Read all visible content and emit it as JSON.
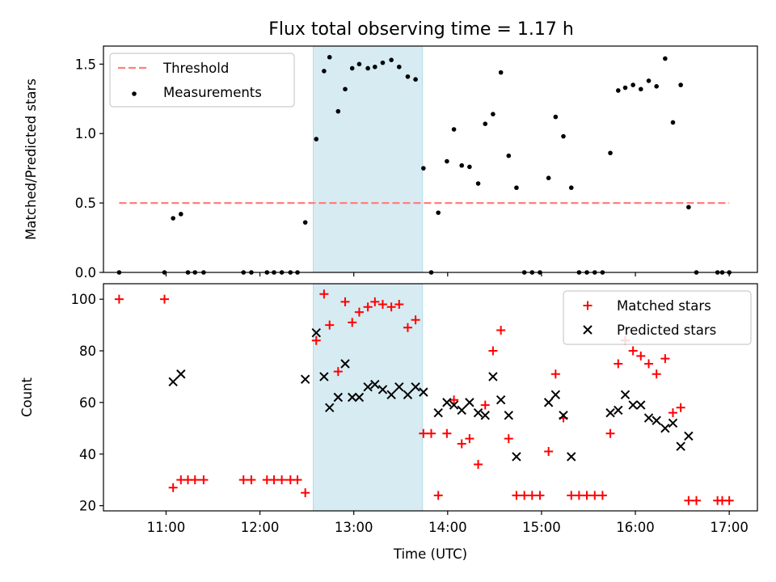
{
  "title": "Flux total observing time = 1.17 h",
  "chart_data": [
    {
      "type": "scatter",
      "ylabel": "Matched/Predicted stars",
      "xlim": [
        10.333,
        17.3
      ],
      "ylim": [
        0,
        1.63
      ],
      "yticks": [
        0.0,
        0.5,
        1.0,
        1.5
      ],
      "shaded_region": {
        "x_start": 12.567,
        "x_end": 13.733,
        "color": "#add8e6"
      },
      "legend_position": "upper left",
      "series": [
        {
          "name": "Threshold",
          "kind": "dashed-line",
          "color": "#ff7f7f",
          "x": [
            10.5,
            17.0
          ],
          "y": [
            0.5,
            0.5
          ]
        },
        {
          "name": "Measurements",
          "kind": "dot",
          "color": "#000000",
          "x": [
            10.5,
            10.983,
            11.075,
            11.158,
            11.233,
            11.308,
            11.4,
            11.825,
            11.908,
            12.075,
            12.15,
            12.233,
            12.325,
            12.4,
            12.483,
            12.6,
            12.683,
            12.742,
            12.833,
            12.908,
            12.983,
            13.058,
            13.15,
            13.225,
            13.308,
            13.4,
            13.483,
            13.575,
            13.658,
            13.742,
            13.825,
            13.9,
            13.992,
            14.067,
            14.15,
            14.233,
            14.325,
            14.4,
            14.483,
            14.567,
            14.65,
            14.733,
            14.817,
            14.9,
            14.983,
            15.075,
            15.15,
            15.233,
            15.317,
            15.4,
            15.483,
            15.567,
            15.65,
            15.733,
            15.817,
            15.892,
            15.975,
            16.058,
            16.142,
            16.225,
            16.317,
            16.4,
            16.483,
            16.567,
            16.65,
            16.875,
            16.925,
            17.0
          ],
          "y": [
            0.0,
            0.0,
            0.39,
            0.42,
            0.0,
            0.0,
            0.0,
            0.0,
            0.0,
            0.0,
            0.0,
            0.0,
            0.0,
            0.0,
            0.36,
            0.96,
            1.45,
            1.55,
            1.16,
            1.32,
            1.47,
            1.5,
            1.47,
            1.48,
            1.51,
            1.53,
            1.48,
            1.41,
            1.39,
            0.75,
            0.0,
            0.43,
            0.8,
            1.03,
            0.77,
            0.76,
            0.64,
            1.07,
            1.14,
            1.44,
            0.84,
            0.61,
            0.0,
            0.0,
            0.0,
            0.68,
            1.12,
            0.98,
            0.61,
            0.0,
            0.0,
            0.0,
            0.0,
            0.86,
            1.31,
            1.33,
            1.35,
            1.32,
            1.38,
            1.34,
            1.54,
            1.08,
            1.35,
            0.47,
            0.0,
            0.0,
            0.0,
            0.0
          ]
        }
      ]
    },
    {
      "type": "scatter",
      "xlabel": "Time (UTC)",
      "ylabel": "Count",
      "xlim": [
        10.333,
        17.3
      ],
      "ylim": [
        18,
        106
      ],
      "yticks": [
        20,
        40,
        60,
        80,
        100
      ],
      "xticks": [
        "11:00",
        "12:00",
        "13:00",
        "14:00",
        "15:00",
        "16:00",
        "17:00"
      ],
      "shaded_region": {
        "x_start": 12.567,
        "x_end": 13.733,
        "color": "#add8e6"
      },
      "legend_position": "upper right",
      "series": [
        {
          "name": "Matched stars",
          "kind": "plus",
          "color": "#ff0000",
          "x": [
            10.5,
            10.983,
            11.075,
            11.158,
            11.233,
            11.308,
            11.4,
            11.825,
            11.908,
            12.075,
            12.15,
            12.233,
            12.325,
            12.4,
            12.483,
            12.6,
            12.683,
            12.742,
            12.833,
            12.908,
            12.983,
            13.058,
            13.15,
            13.225,
            13.308,
            13.4,
            13.483,
            13.575,
            13.658,
            13.742,
            13.825,
            13.9,
            13.992,
            14.067,
            14.15,
            14.233,
            14.325,
            14.4,
            14.483,
            14.567,
            14.65,
            14.733,
            14.817,
            14.9,
            14.983,
            15.075,
            15.15,
            15.233,
            15.317,
            15.4,
            15.483,
            15.567,
            15.65,
            15.733,
            15.817,
            15.892,
            15.975,
            16.058,
            16.142,
            16.225,
            16.317,
            16.4,
            16.483,
            16.567,
            16.65,
            16.875,
            16.925,
            17.0
          ],
          "y": [
            100,
            100,
            27,
            30,
            30,
            30,
            30,
            30,
            30,
            30,
            30,
            30,
            30,
            30,
            25,
            84,
            102,
            90,
            72,
            99,
            91,
            95,
            97,
            99,
            98,
            97,
            98,
            89,
            92,
            48,
            48,
            24,
            48,
            61,
            44,
            46,
            36,
            59,
            80,
            88,
            46,
            24,
            24,
            24,
            24,
            41,
            71,
            54,
            24,
            24,
            24,
            24,
            24,
            48,
            75,
            84,
            80,
            78,
            75,
            71,
            77,
            56,
            58,
            22,
            22,
            22,
            22,
            22
          ]
        },
        {
          "name": "Predicted stars",
          "kind": "cross",
          "color": "#000000",
          "x": [
            11.075,
            11.158,
            12.483,
            12.6,
            12.683,
            12.742,
            12.833,
            12.908,
            12.983,
            13.058,
            13.15,
            13.225,
            13.308,
            13.4,
            13.483,
            13.575,
            13.658,
            13.742,
            13.9,
            13.992,
            14.067,
            14.15,
            14.233,
            14.325,
            14.4,
            14.483,
            14.567,
            14.65,
            14.733,
            15.075,
            15.15,
            15.233,
            15.317,
            15.733,
            15.817,
            15.892,
            15.975,
            16.058,
            16.142,
            16.225,
            16.317,
            16.4,
            16.483,
            16.567
          ],
          "y": [
            68,
            71,
            69,
            87,
            70,
            58,
            62,
            75,
            62,
            62,
            66,
            67,
            65,
            63,
            66,
            63,
            66,
            64,
            56,
            60,
            59,
            57,
            60,
            56,
            55,
            70,
            61,
            55,
            39,
            60,
            63,
            55,
            39,
            56,
            57,
            63,
            59,
            59,
            54,
            53,
            50,
            52,
            43,
            47
          ]
        }
      ]
    }
  ]
}
